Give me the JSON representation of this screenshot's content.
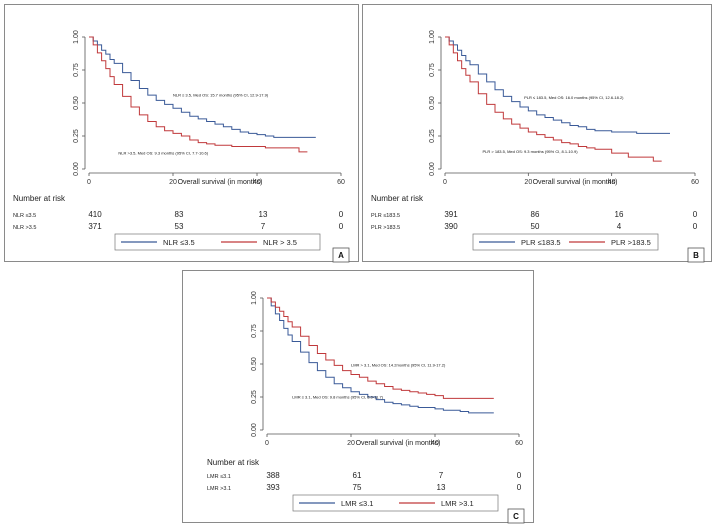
{
  "chart_data": [
    {
      "type": "line",
      "panel_letter": "A",
      "xlabel": "Overall survival (in months)",
      "xlim": [
        0,
        60
      ],
      "xticks": [
        "0",
        "20",
        "40",
        "60"
      ],
      "ylim": [
        0,
        1
      ],
      "yticks": [
        "0.00",
        "0.25",
        "0.50",
        "0.75",
        "1.00"
      ],
      "series": [
        {
          "name": "NLR ≤3.5",
          "color": "#3a5a98",
          "x": [
            0,
            1,
            2,
            3,
            4,
            5,
            6,
            8,
            10,
            12,
            14,
            16,
            18,
            20,
            22,
            24,
            26,
            28,
            30,
            32,
            34,
            36,
            38,
            40,
            42,
            44,
            46,
            48,
            50,
            52,
            54
          ],
          "y": [
            1,
            0.97,
            0.94,
            0.9,
            0.87,
            0.83,
            0.8,
            0.73,
            0.67,
            0.61,
            0.56,
            0.52,
            0.49,
            0.46,
            0.43,
            0.4,
            0.38,
            0.36,
            0.34,
            0.32,
            0.3,
            0.28,
            0.27,
            0.26,
            0.25,
            0.24,
            0.24,
            0.24,
            0.24,
            0.24,
            0.24
          ]
        },
        {
          "name": "NLR > 3.5",
          "color": "#c0393b",
          "x": [
            0,
            1,
            2,
            3,
            4,
            5,
            6,
            8,
            10,
            12,
            14,
            16,
            18,
            20,
            22,
            24,
            26,
            28,
            30,
            32,
            34,
            36,
            38,
            40,
            42,
            44,
            46,
            48,
            50,
            52
          ],
          "y": [
            1,
            0.94,
            0.88,
            0.82,
            0.76,
            0.7,
            0.64,
            0.55,
            0.47,
            0.41,
            0.36,
            0.32,
            0.29,
            0.27,
            0.25,
            0.22,
            0.2,
            0.19,
            0.18,
            0.18,
            0.17,
            0.17,
            0.17,
            0.17,
            0.16,
            0.16,
            0.16,
            0.16,
            0.13,
            0.13
          ]
        }
      ],
      "annotations": [
        {
          "text": "NLR ≤ 3.5, Med OS: 15.7 months (95% CI, 12.9-17.9)",
          "x": 20,
          "y": 0.55
        },
        {
          "text": "NLR >3.5, Med OS: 9.3 months (95% CI, 7.7-10.6)",
          "x": 7,
          "y": 0.11
        }
      ],
      "risk_table": {
        "title": "Number at risk",
        "rows": [
          {
            "label": "NLR ≤3.5",
            "values": [
              "410",
              "83",
              "13",
              "0"
            ]
          },
          {
            "label": "NLR >3.5",
            "values": [
              "371",
              "53",
              "7",
              "0"
            ]
          }
        ]
      }
    },
    {
      "type": "line",
      "panel_letter": "B",
      "xlabel": "Overall survival (in months)",
      "xlim": [
        0,
        60
      ],
      "xticks": [
        "0",
        "20",
        "40",
        "60"
      ],
      "ylim": [
        0,
        1
      ],
      "yticks": [
        "0.00",
        "0.25",
        "0.50",
        "0.75",
        "1.00"
      ],
      "series": [
        {
          "name": "PLR ≤183.5",
          "color": "#3a5a98",
          "x": [
            0,
            1,
            2,
            3,
            4,
            5,
            6,
            8,
            10,
            12,
            14,
            16,
            18,
            20,
            22,
            24,
            26,
            28,
            30,
            32,
            34,
            36,
            38,
            40,
            42,
            44,
            46,
            48,
            50,
            52,
            54
          ],
          "y": [
            1,
            0.97,
            0.94,
            0.9,
            0.86,
            0.82,
            0.79,
            0.72,
            0.66,
            0.6,
            0.55,
            0.51,
            0.47,
            0.44,
            0.41,
            0.39,
            0.37,
            0.35,
            0.33,
            0.32,
            0.3,
            0.29,
            0.29,
            0.28,
            0.28,
            0.28,
            0.27,
            0.27,
            0.27,
            0.27,
            0.27
          ]
        },
        {
          "name": "PLR >183.5",
          "color": "#c0393b",
          "x": [
            0,
            1,
            2,
            3,
            4,
            5,
            6,
            8,
            10,
            12,
            14,
            16,
            18,
            20,
            22,
            24,
            26,
            28,
            30,
            32,
            34,
            36,
            38,
            40,
            42,
            44,
            46,
            48,
            50,
            52
          ],
          "y": [
            1,
            0.94,
            0.88,
            0.82,
            0.76,
            0.71,
            0.66,
            0.57,
            0.49,
            0.43,
            0.38,
            0.34,
            0.31,
            0.28,
            0.26,
            0.24,
            0.22,
            0.2,
            0.19,
            0.17,
            0.16,
            0.15,
            0.15,
            0.12,
            0.12,
            0.09,
            0.09,
            0.09,
            0.06,
            0.06
          ]
        }
      ],
      "annotations": [
        {
          "text": "PLR ≤ 183.5, Med OS: 16.0 months (95% CI, 12.6-18.2)",
          "x": 19,
          "y": 0.53
        },
        {
          "text": "PLR > 183.5, Med OS: 9.3 months (95% CI, 8.1-10.9)",
          "x": 9,
          "y": 0.12
        }
      ],
      "risk_table": {
        "title": "Number at risk",
        "rows": [
          {
            "label": "PLR ≤183.5",
            "values": [
              "391",
              "86",
              "16",
              "0"
            ]
          },
          {
            "label": "PLR >183.5",
            "values": [
              "390",
              "50",
              "4",
              "0"
            ]
          }
        ]
      }
    },
    {
      "type": "line",
      "panel_letter": "C",
      "xlabel": "Overall survival (in months)",
      "xlim": [
        0,
        60
      ],
      "xticks": [
        "0",
        "20",
        "40",
        "60"
      ],
      "ylim": [
        0,
        1
      ],
      "yticks": [
        "0.00",
        "0.25",
        "0.50",
        "0.75",
        "1.00"
      ],
      "series": [
        {
          "name": "LMR ≤3.1",
          "color": "#3a5a98",
          "x": [
            0,
            1,
            2,
            3,
            4,
            5,
            6,
            8,
            10,
            12,
            14,
            16,
            18,
            20,
            22,
            24,
            26,
            28,
            30,
            32,
            34,
            36,
            38,
            40,
            42,
            44,
            46,
            48,
            50,
            52,
            54
          ],
          "y": [
            1,
            0.94,
            0.88,
            0.83,
            0.77,
            0.72,
            0.67,
            0.59,
            0.51,
            0.45,
            0.4,
            0.35,
            0.32,
            0.29,
            0.27,
            0.25,
            0.23,
            0.21,
            0.2,
            0.19,
            0.18,
            0.17,
            0.17,
            0.16,
            0.15,
            0.15,
            0.14,
            0.13,
            0.13,
            0.13,
            0.13
          ]
        },
        {
          "name": "LMR >3.1",
          "color": "#c0393b",
          "x": [
            0,
            1,
            2,
            3,
            4,
            5,
            6,
            8,
            10,
            12,
            14,
            16,
            18,
            20,
            22,
            24,
            26,
            28,
            30,
            32,
            34,
            36,
            38,
            40,
            42,
            44,
            46,
            48,
            50,
            52,
            54
          ],
          "y": [
            1,
            0.97,
            0.93,
            0.9,
            0.86,
            0.82,
            0.78,
            0.71,
            0.64,
            0.58,
            0.53,
            0.49,
            0.45,
            0.42,
            0.4,
            0.37,
            0.35,
            0.33,
            0.31,
            0.3,
            0.29,
            0.28,
            0.27,
            0.26,
            0.24,
            0.24,
            0.24,
            0.24,
            0.24,
            0.24,
            0.24
          ]
        }
      ],
      "annotations": [
        {
          "text": "LMR > 3.1, Med OS: 14.2months (95% CI, 11.9-17.2)",
          "x": 20,
          "y": 0.48
        },
        {
          "text": "LMR ≤ 3.1, Med OS: 9.8 months (95% CI, 8.0-11.7)",
          "x": 6,
          "y": 0.24
        }
      ],
      "risk_table": {
        "title": "Number at risk",
        "rows": [
          {
            "label": "LMR ≤3.1",
            "values": [
              "388",
              "61",
              "7",
              "0"
            ]
          },
          {
            "label": "LMR >3.1",
            "values": [
              "393",
              "75",
              "13",
              "0"
            ]
          }
        ]
      }
    }
  ]
}
